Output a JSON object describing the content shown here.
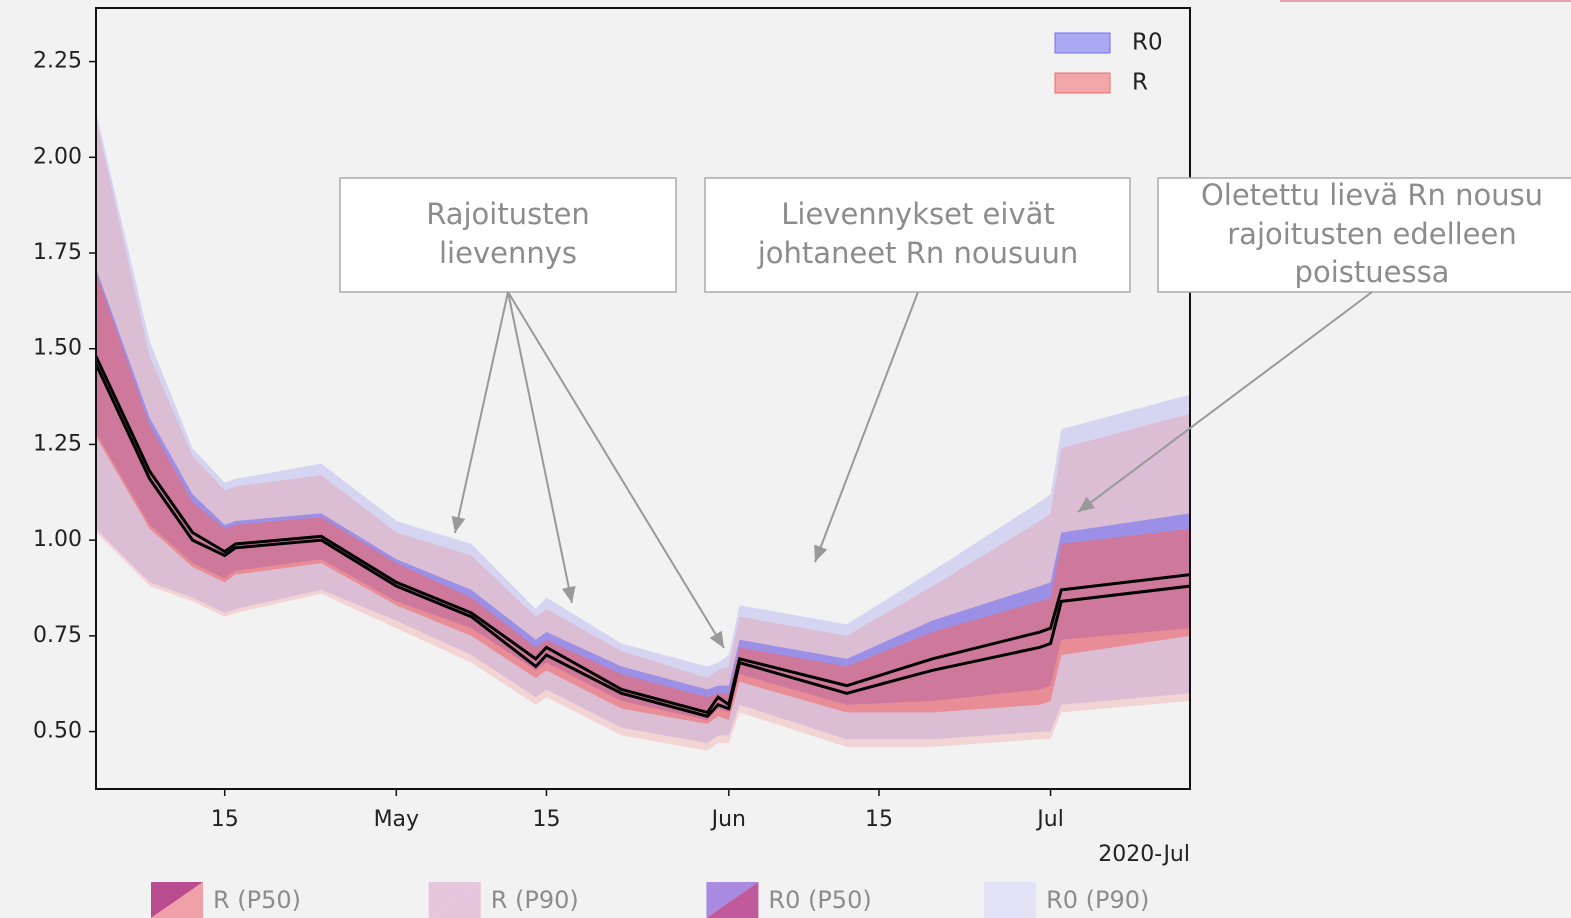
{
  "chart_data": {
    "type": "band",
    "x": [
      "2020-04-03",
      "2020-04-08",
      "2020-04-12",
      "2020-04-15",
      "2020-04-16",
      "2020-04-24",
      "2020-05-01",
      "2020-05-08",
      "2020-05-14",
      "2020-05-15",
      "2020-05-22",
      "2020-05-30",
      "2020-05-31",
      "2020-06-01",
      "2020-06-02",
      "2020-06-12",
      "2020-06-20",
      "2020-06-30",
      "2020-07-01",
      "2020-07-02",
      "2020-07-14"
    ],
    "xlim": [
      "2020-04-03",
      "2020-07-14"
    ],
    "xticks": [
      {
        "value": "2020-04-15",
        "label": "15"
      },
      {
        "value": "2020-05-01",
        "label": "May"
      },
      {
        "value": "2020-05-15",
        "label": "15"
      },
      {
        "value": "2020-06-01",
        "label": "Jun"
      },
      {
        "value": "2020-06-15",
        "label": "15"
      },
      {
        "value": "2020-07-01",
        "label": "Jul"
      }
    ],
    "x_offset_label": "2020-Jul",
    "ylim": [
      0.35,
      2.39
    ],
    "yticks": [
      {
        "value": 0.5,
        "label": "0.50"
      },
      {
        "value": 0.75,
        "label": "0.75"
      },
      {
        "value": 1,
        "label": "1.00"
      },
      {
        "value": 1.25,
        "label": "1.25"
      },
      {
        "value": 1.5,
        "label": "1.50"
      },
      {
        "value": 1.75,
        "label": "1.75"
      },
      {
        "value": 2,
        "label": "2.00"
      },
      {
        "value": 2.25,
        "label": "2.25"
      }
    ],
    "legend": "upper right",
    "series": [
      {
        "name": "R0",
        "color": "#6f6ff2",
        "values": [
          1.48,
          1.18,
          1.02,
          0.97,
          0.99,
          1.01,
          0.89,
          0.81,
          0.69,
          0.72,
          0.61,
          0.55,
          0.59,
          0.57,
          0.69,
          0.62,
          0.69,
          0.76,
          0.77,
          0.87,
          0.91
        ],
        "p50_low": [
          1.28,
          1.04,
          0.94,
          0.9,
          0.92,
          0.95,
          0.84,
          0.77,
          0.66,
          0.68,
          0.58,
          0.53,
          0.56,
          0.55,
          0.65,
          0.57,
          0.58,
          0.61,
          0.62,
          0.74,
          0.77
        ],
        "p50_high": [
          1.71,
          1.32,
          1.12,
          1.04,
          1.05,
          1.07,
          0.95,
          0.87,
          0.74,
          0.76,
          0.67,
          0.61,
          0.62,
          0.62,
          0.74,
          0.69,
          0.79,
          0.88,
          0.89,
          1.02,
          1.07
        ],
        "p90_low": [
          1.03,
          0.89,
          0.85,
          0.81,
          0.82,
          0.87,
          0.79,
          0.7,
          0.59,
          0.61,
          0.51,
          0.47,
          0.49,
          0.49,
          0.57,
          0.48,
          0.48,
          0.5,
          0.5,
          0.57,
          0.6
        ],
        "p90_high": [
          2.12,
          1.52,
          1.24,
          1.15,
          1.16,
          1.2,
          1.05,
          0.99,
          0.82,
          0.85,
          0.73,
          0.67,
          0.68,
          0.7,
          0.83,
          0.78,
          0.92,
          1.1,
          1.12,
          1.29,
          1.38
        ]
      },
      {
        "name": "R",
        "color": "#f06a6a",
        "values": [
          1.46,
          1.16,
          1.0,
          0.96,
          0.98,
          1.0,
          0.88,
          0.8,
          0.67,
          0.7,
          0.6,
          0.54,
          0.57,
          0.56,
          0.68,
          0.6,
          0.66,
          0.72,
          0.73,
          0.84,
          0.88
        ],
        "p50_low": [
          1.27,
          1.03,
          0.93,
          0.89,
          0.91,
          0.94,
          0.83,
          0.75,
          0.64,
          0.66,
          0.56,
          0.52,
          0.54,
          0.53,
          0.63,
          0.55,
          0.55,
          0.57,
          0.58,
          0.7,
          0.75
        ],
        "p50_high": [
          1.7,
          1.3,
          1.1,
          1.03,
          1.04,
          1.06,
          0.94,
          0.85,
          0.72,
          0.74,
          0.65,
          0.59,
          0.6,
          0.6,
          0.72,
          0.67,
          0.76,
          0.84,
          0.85,
          0.99,
          1.03
        ],
        "p90_low": [
          1.02,
          0.88,
          0.84,
          0.8,
          0.81,
          0.86,
          0.77,
          0.68,
          0.57,
          0.59,
          0.49,
          0.45,
          0.47,
          0.47,
          0.55,
          0.46,
          0.46,
          0.48,
          0.48,
          0.55,
          0.58
        ],
        "p90_high": [
          2.1,
          1.48,
          1.22,
          1.13,
          1.14,
          1.17,
          1.02,
          0.96,
          0.8,
          0.82,
          0.71,
          0.64,
          0.66,
          0.67,
          0.8,
          0.75,
          0.88,
          1.05,
          1.07,
          1.24,
          1.33
        ]
      }
    ],
    "annotations": [
      {
        "lines": [
          "Rajoitusten",
          "lievennys"
        ]
      },
      {
        "lines": [
          "Lievennykset eivät",
          "johtaneet Rn nousuun"
        ]
      },
      {
        "lines": [
          "Oletettu lievä Rn nousu",
          "rajoitusten edelleen",
          "poistuessa"
        ]
      }
    ],
    "band_legend": [
      "R (P50)",
      "R (P90)",
      "R0 (P50)",
      "R0 (P90)"
    ]
  }
}
